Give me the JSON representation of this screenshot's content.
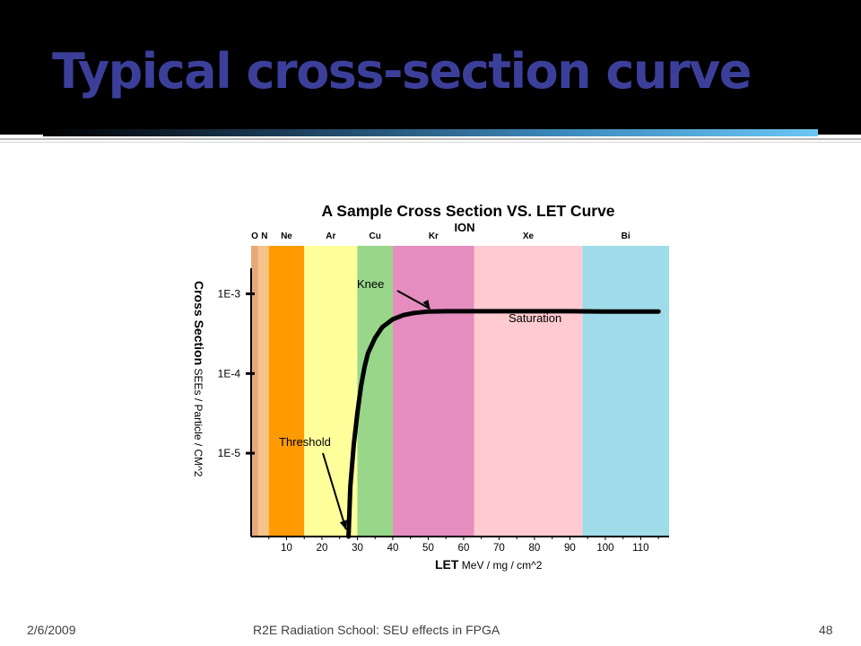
{
  "slide": {
    "title": "Typical cross-section curve",
    "footer_date": "2/6/2009",
    "footer_center": "R2E Radiation School: SEU effects in FPGA",
    "page_number": "48"
  },
  "chart_data": {
    "type": "line",
    "title": "A Sample Cross Section VS. LET Curve",
    "band_title": "ION",
    "xlabel_bold": "LET",
    "xlabel_rest": " MeV / mg / cm^2",
    "ylabel_bold": "Cross Section",
    "ylabel_rest": " SEEs / Particle / CM^2",
    "x_ticks": [
      10,
      20,
      30,
      40,
      50,
      60,
      70,
      80,
      90,
      100,
      110
    ],
    "xlim": [
      0,
      118
    ],
    "y_scale": "log",
    "y_ticks": [
      {
        "value": 1e-05,
        "label": "1E-5"
      },
      {
        "value": 0.0001,
        "label": "1E-4"
      },
      {
        "value": 0.001,
        "label": "1E-3"
      }
    ],
    "ylim": [
      9e-07,
      0.004
    ],
    "ion_bands": [
      {
        "label": "O",
        "from": 0,
        "to": 2,
        "color": "#e6a97c"
      },
      {
        "label": "N",
        "from": 2,
        "to": 5,
        "color": "#f6c489"
      },
      {
        "label": "Ne",
        "from": 5,
        "to": 15,
        "color": "#ff9b00"
      },
      {
        "label": "Ar",
        "from": 15,
        "to": 30,
        "color": "#ffff9c"
      },
      {
        "label": "Cu",
        "from": 30,
        "to": 40,
        "color": "#98d68a"
      },
      {
        "label": "Kr",
        "from": 40,
        "to": 63,
        "color": "#e58dbf"
      },
      {
        "label": "Xe",
        "from": 63,
        "to": 93.5,
        "color": "#ffcbd0"
      },
      {
        "label": "Bi",
        "from": 93.5,
        "to": 118,
        "color": "#9fdbe8"
      }
    ],
    "series": [
      {
        "x": [
          27.5,
          28,
          29,
          30,
          31,
          32,
          33,
          35,
          37,
          40,
          43,
          46,
          50,
          55,
          60,
          70,
          80,
          90,
          100,
          110,
          115
        ],
        "y": [
          9e-07,
          3.8e-06,
          1.3e-05,
          3.2e-05,
          6.8e-05,
          0.00012,
          0.00018,
          0.00028,
          0.00038,
          0.00048,
          0.00054,
          0.000575,
          0.0006,
          0.000605,
          0.000605,
          0.000605,
          0.000605,
          0.000605,
          0.0006,
          0.0006,
          0.0006
        ],
        "color": "#000000"
      }
    ],
    "annotations": [
      {
        "text": "Knee",
        "arrow_to": [
          50.5,
          0.0006
        ]
      },
      {
        "text": "Saturation"
      },
      {
        "text": "Threshold",
        "arrow_to": [
          26.8,
          1.1e-06
        ]
      }
    ]
  }
}
